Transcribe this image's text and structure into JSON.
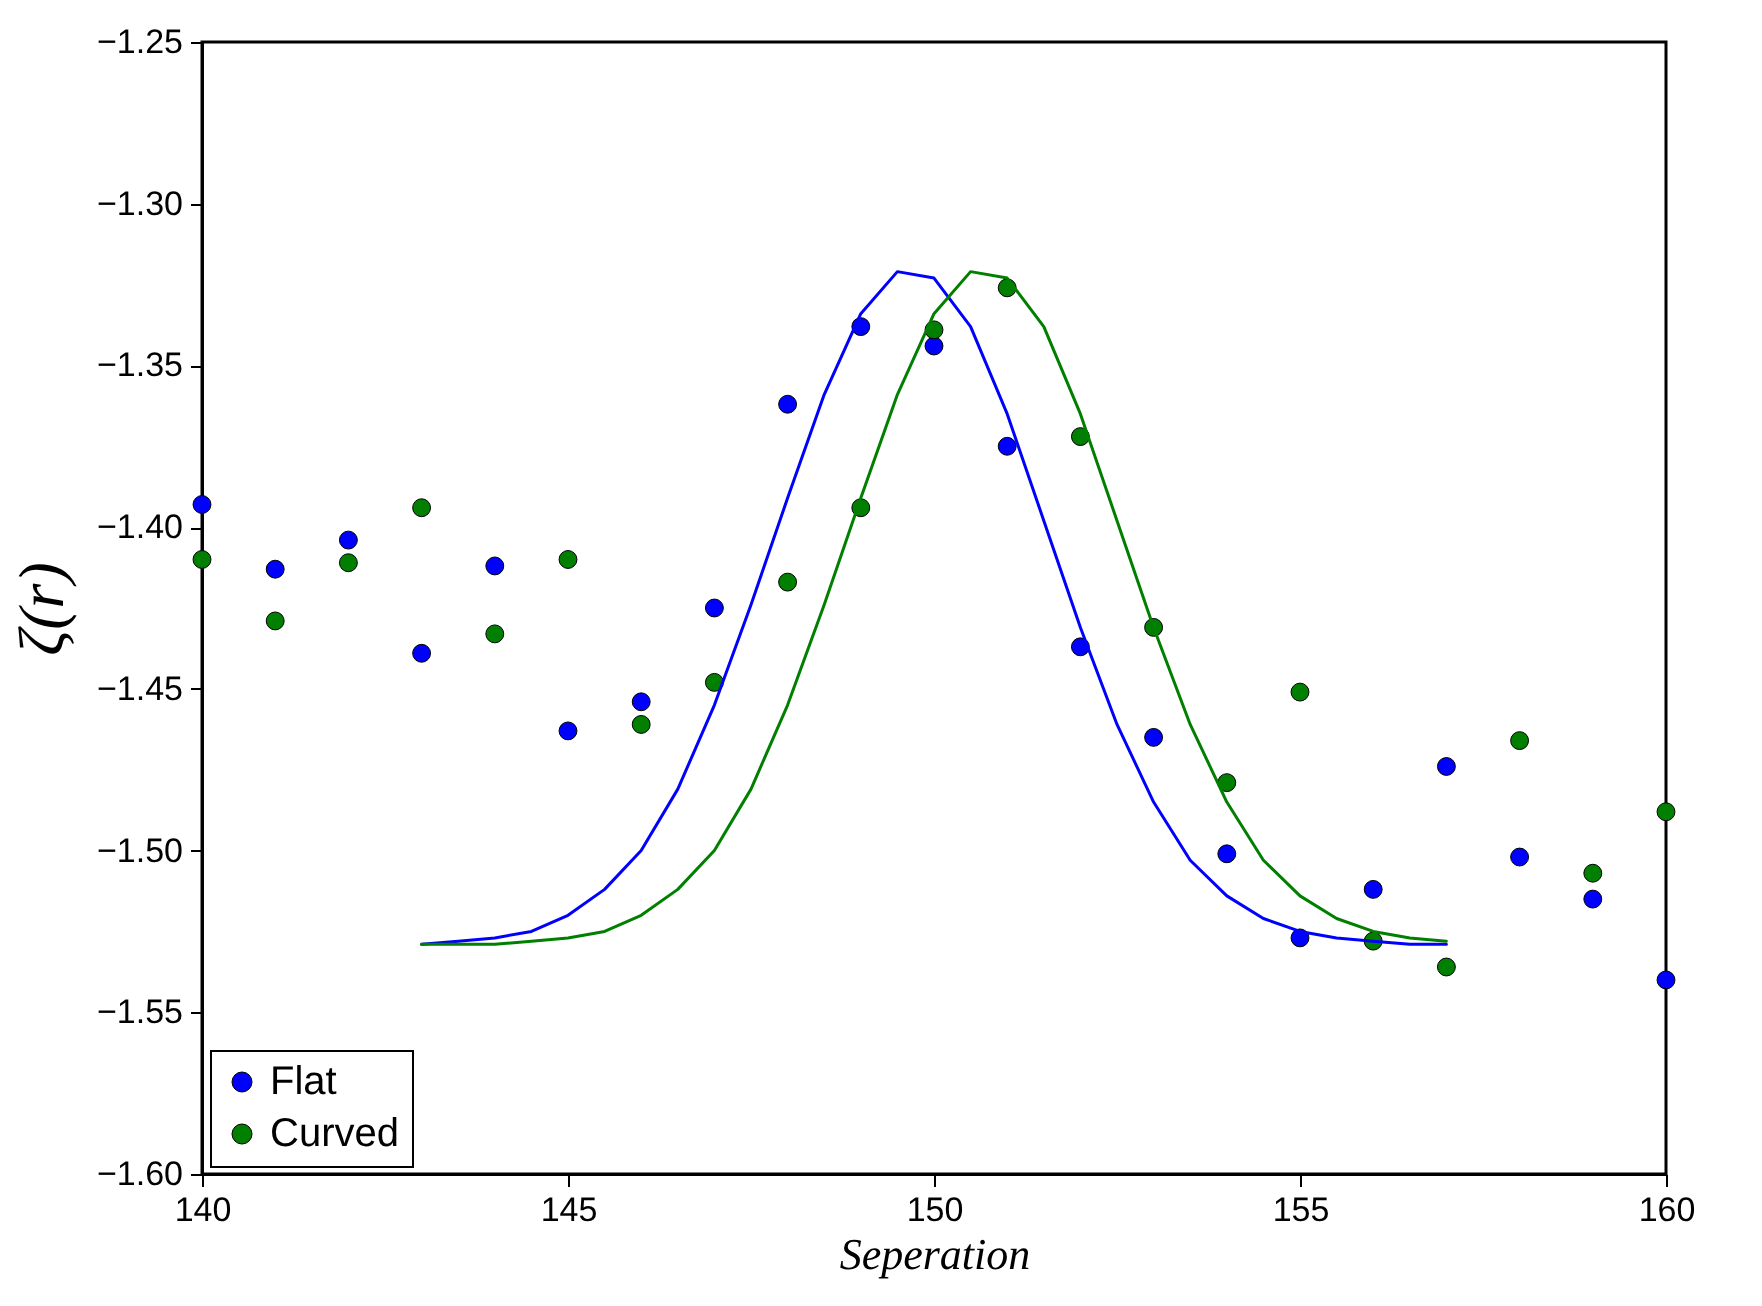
{
  "chart_data": {
    "type": "scatter",
    "xlabel": "Seperation",
    "ylabel": "ζ(r)",
    "xlim": [
      140,
      160
    ],
    "xticks": [
      140,
      145,
      150,
      155,
      160
    ],
    "ylim": [
      -1.6,
      -1.25
    ],
    "yticks": [
      {
        "value": -1.6,
        "label": "−1.60"
      },
      {
        "value": -1.55,
        "label": "−1.55"
      },
      {
        "value": -1.5,
        "label": "−1.50"
      },
      {
        "value": -1.45,
        "label": "−1.45"
      },
      {
        "value": -1.4,
        "label": "−1.40"
      },
      {
        "value": -1.35,
        "label": "−1.35"
      },
      {
        "value": -1.3,
        "label": "−1.30"
      },
      {
        "value": -1.25,
        "label": "−1.25"
      }
    ],
    "grid": false,
    "legend": "bottom left",
    "marker": "circle",
    "x": [
      140,
      141,
      142,
      143,
      144,
      145,
      146,
      147,
      148,
      149,
      150,
      151,
      152,
      153,
      154,
      155,
      156,
      157,
      158,
      159,
      160
    ],
    "series": [
      {
        "name": "Flat",
        "color": "#0000ff",
        "values": [
          -1.393,
          -1.413,
          -1.404,
          -1.439,
          -1.412,
          -1.463,
          -1.454,
          -1.425,
          -1.362,
          -1.338,
          -1.344,
          -1.375,
          -1.437,
          -1.465,
          -1.501,
          -1.527,
          -1.512,
          -1.474,
          -1.502,
          -1.515,
          -1.54
        ]
      },
      {
        "name": "Curved",
        "color": "#007f00",
        "values": [
          -1.41,
          -1.429,
          -1.411,
          -1.394,
          -1.433,
          -1.41,
          -1.461,
          -1.448,
          -1.417,
          -1.394,
          -1.339,
          -1.326,
          -1.372,
          -1.431,
          -1.479,
          -1.451,
          -1.528,
          -1.536,
          -1.466,
          -1.507,
          -1.488
        ]
      },
      {
        "type": "line",
        "line_style": "solid",
        "marker": "none",
        "color": "#0000ff",
        "x": [
          143,
          143.5,
          144,
          144.5,
          145,
          145.5,
          146,
          146.5,
          147,
          147.5,
          148,
          148.5,
          149,
          149.5,
          150,
          150.5,
          151,
          151.5,
          152,
          152.5,
          153,
          153.5,
          154,
          154.5,
          155,
          155.5,
          156,
          156.5,
          157
        ],
        "values": [
          -1.529,
          -1.528,
          -1.527,
          -1.525,
          -1.52,
          -1.512,
          -1.5,
          -1.481,
          -1.455,
          -1.424,
          -1.391,
          -1.359,
          -1.334,
          -1.321,
          -1.323,
          -1.338,
          -1.365,
          -1.398,
          -1.431,
          -1.461,
          -1.485,
          -1.503,
          -1.514,
          -1.521,
          -1.525,
          -1.527,
          -1.528,
          -1.529,
          -1.529
        ]
      },
      {
        "type": "line",
        "line_style": "solid",
        "marker": "none",
        "color": "#007f00",
        "x": [
          143,
          143.5,
          144,
          144.5,
          145,
          145.5,
          146,
          146.5,
          147,
          147.5,
          148,
          148.5,
          149,
          149.5,
          150,
          150.5,
          151,
          151.5,
          152,
          152.5,
          153,
          153.5,
          154,
          154.5,
          155,
          155.5,
          156,
          156.5,
          157
        ],
        "values": [
          -1.529,
          -1.529,
          -1.529,
          -1.528,
          -1.527,
          -1.525,
          -1.52,
          -1.512,
          -1.5,
          -1.481,
          -1.455,
          -1.424,
          -1.391,
          -1.359,
          -1.334,
          -1.321,
          -1.323,
          -1.338,
          -1.365,
          -1.398,
          -1.431,
          -1.461,
          -1.485,
          -1.503,
          -1.514,
          -1.521,
          -1.525,
          -1.527,
          -1.528
        ]
      }
    ]
  }
}
